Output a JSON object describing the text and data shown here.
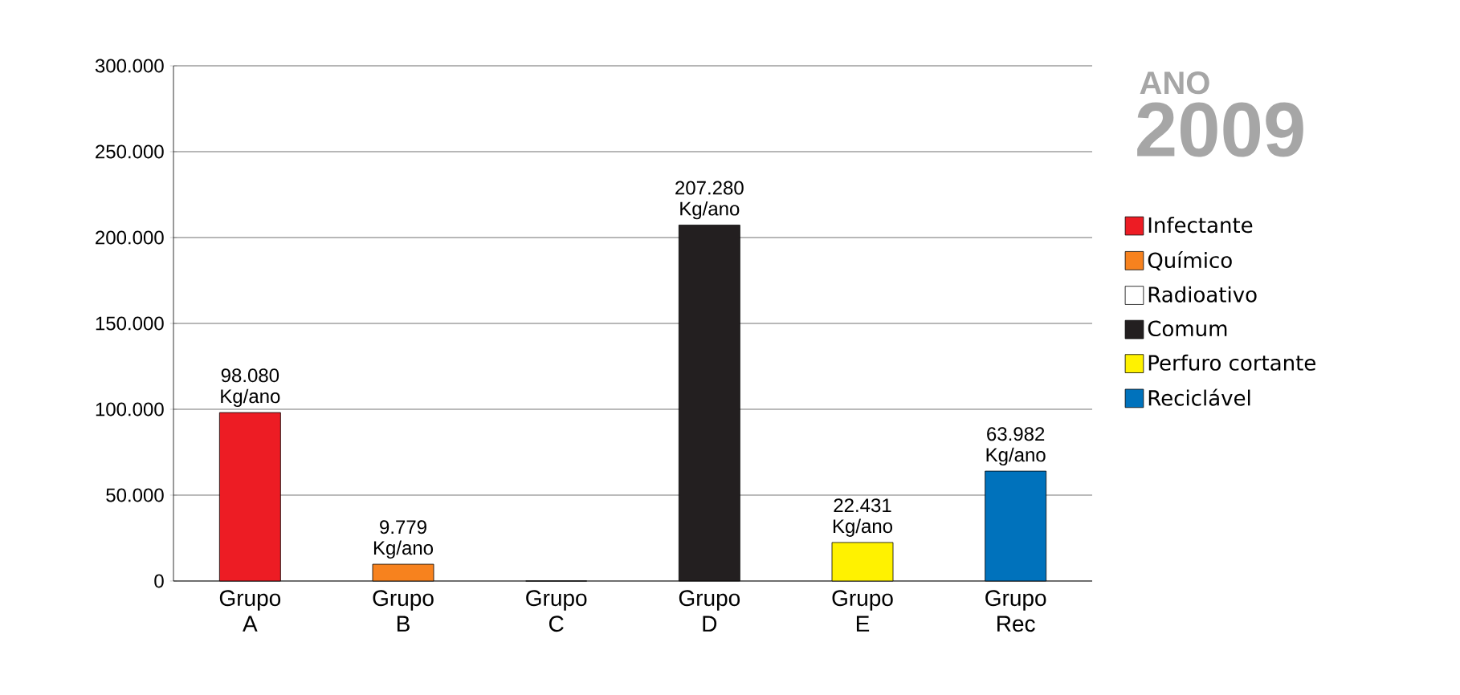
{
  "chart_data": {
    "type": "bar",
    "title": "ANO",
    "subtitle": "2009",
    "categories": [
      "Grupo A",
      "Grupo B",
      "Grupo C",
      "Grupo D",
      "Grupo E",
      "Grupo Rec"
    ],
    "series": [
      {
        "name": "Infectante",
        "color": "#ed1c24",
        "values": [
          98080,
          null,
          null,
          null,
          null,
          null
        ],
        "value_labels": [
          "98.080 Kg/ano",
          null,
          null,
          null,
          null,
          null
        ]
      },
      {
        "name": "Químico",
        "color": "#f7821e",
        "values": [
          null,
          9779,
          null,
          null,
          null,
          null
        ],
        "value_labels": [
          null,
          "9.779 Kg/ano",
          null,
          null,
          null,
          null
        ]
      },
      {
        "name": "Radioativo",
        "color": "#ffffff",
        "values": [
          null,
          null,
          0,
          null,
          null,
          null
        ],
        "value_labels": [
          null,
          null,
          null,
          null,
          null,
          null
        ]
      },
      {
        "name": "Comum",
        "color": "#231f20",
        "values": [
          null,
          null,
          null,
          207280,
          null,
          null
        ],
        "value_labels": [
          null,
          null,
          null,
          "207.280 Kg/ano",
          null,
          null
        ]
      },
      {
        "name": "Perfuro cortante",
        "color": "#fff200",
        "values": [
          null,
          null,
          null,
          null,
          22431,
          null
        ],
        "value_labels": [
          null,
          null,
          null,
          null,
          "22.431 Kg/ano",
          null
        ]
      },
      {
        "name": "Reciclável",
        "color": "#0072bc",
        "values": [
          null,
          null,
          null,
          null,
          null,
          63982
        ],
        "value_labels": [
          null,
          null,
          null,
          null,
          null,
          "63.982 Kg/ano"
        ]
      }
    ],
    "ylim": [
      0,
      300000
    ],
    "yticks": [
      {
        "value": 0,
        "label": "0"
      },
      {
        "value": 50000,
        "label": "50.000"
      },
      {
        "value": 100000,
        "label": "100.000"
      },
      {
        "value": 150000,
        "label": "150.000"
      },
      {
        "value": 200000,
        "label": "200.000"
      },
      {
        "value": 250000,
        "label": "250.000"
      },
      {
        "value": 300000,
        "label": "300.000"
      }
    ],
    "grid": "y",
    "legend": "right"
  }
}
